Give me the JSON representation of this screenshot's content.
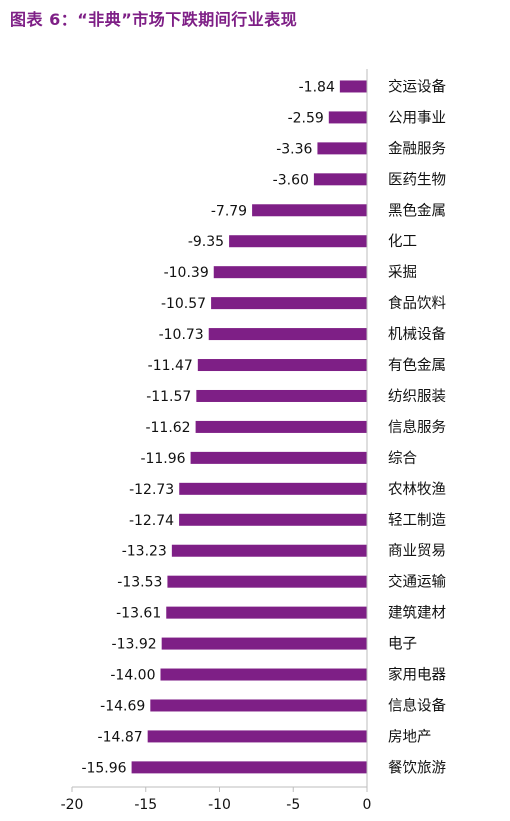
{
  "title": "图表 6：“非典”市场下跌期间行业表现",
  "colors": {
    "title": "#7e1f86",
    "bar": "#7e1f86",
    "axis": "#bdbdbd",
    "text": "#111111"
  },
  "chart_data": {
    "type": "bar",
    "orientation": "horizontal",
    "title": "图表 6：“非典”市场下跌期间行业表现",
    "xlabel": "",
    "ylabel": "",
    "xlim": [
      -20,
      0
    ],
    "x_ticks": [
      -20,
      -15,
      -10,
      -5,
      0
    ],
    "grid": false,
    "legend": "none",
    "category_axis_position": "right",
    "data_labels": true,
    "categories": [
      "交运设备",
      "公用事业",
      "金融服务",
      "医药生物",
      "黑色金属",
      "化工",
      "采掘",
      "食品饮料",
      "机械设备",
      "有色金属",
      "纺织服装",
      "信息服务",
      "综合",
      "农林牧渔",
      "轻工制造",
      "商业贸易",
      "交通运输",
      "建筑建材",
      "电子",
      "家用电器",
      "信息设备",
      "房地产",
      "餐饮旅游"
    ],
    "values": [
      -1.84,
      -2.59,
      -3.36,
      -3.6,
      -7.79,
      -9.35,
      -10.39,
      -10.57,
      -10.73,
      -11.47,
      -11.57,
      -11.62,
      -11.96,
      -12.73,
      -12.74,
      -13.23,
      -13.53,
      -13.61,
      -13.92,
      -14.0,
      -14.69,
      -14.87,
      -15.96
    ],
    "value_labels": [
      "-1.84",
      "-2.59",
      "-3.36",
      "-3.60",
      "-7.79",
      "-9.35",
      "-10.39",
      "-10.57",
      "-10.73",
      "-11.47",
      "-11.57",
      "-11.62",
      "-11.96",
      "-12.73",
      "-12.74",
      "-13.23",
      "-13.53",
      "-13.61",
      "-13.92",
      "-14.00",
      "-14.69",
      "-14.87",
      "-15.96"
    ]
  }
}
